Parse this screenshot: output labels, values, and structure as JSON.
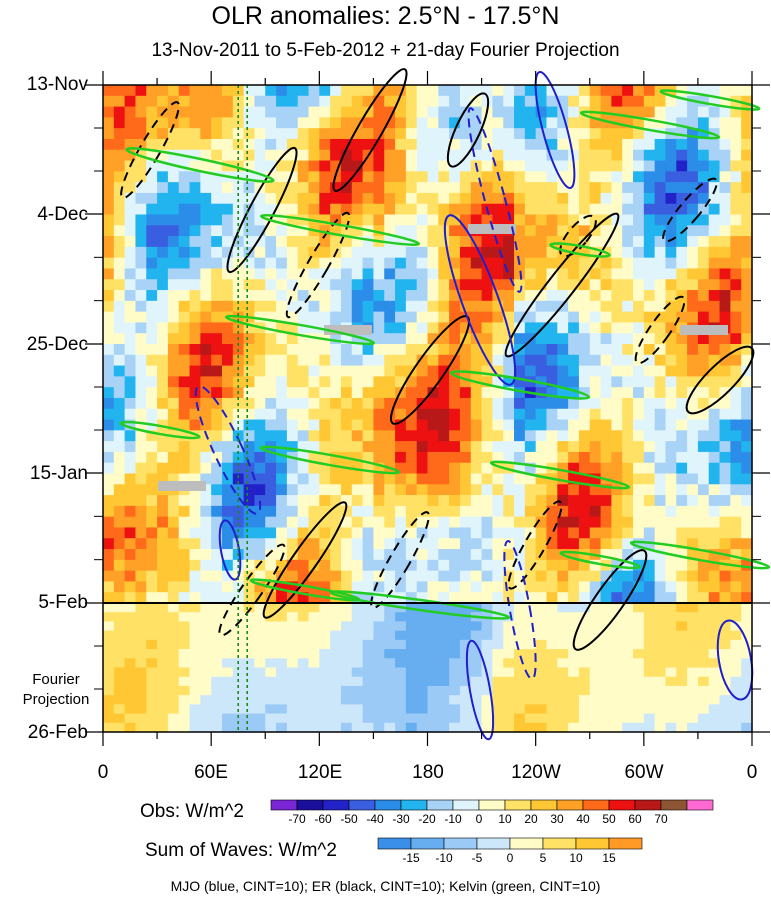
{
  "chart_data": {
    "type": "heatmap",
    "title": "OLR anomalies: 2.5°N - 17.5°N",
    "subtitle": "13-Nov-2011 to 5-Feb-2012 + 21-day Fourier Projection",
    "y_tick_labels": [
      "13-Nov",
      "4-Dec",
      "25-Dec",
      "15-Jan",
      "5-Feb",
      "26-Feb"
    ],
    "x_tick_labels": [
      "0",
      "60E",
      "120E",
      "180",
      "120W",
      "60W",
      "0"
    ],
    "x_range_deg_east": [
      0,
      360
    ],
    "observation_end": "5-Feb",
    "projection_label": [
      "Fourier",
      "Projection"
    ],
    "obs_colorbar": {
      "label": "Obs: W/m^2",
      "ticks": [
        "-70",
        "-60",
        "-50",
        "-40",
        "-30",
        "-20",
        "-10",
        "0",
        "10",
        "20",
        "30",
        "40",
        "50",
        "60",
        "70"
      ],
      "colors": [
        "#7a26d6",
        "#1a0f9c",
        "#2222c8",
        "#3a5ee0",
        "#2b8de8",
        "#22b4ee",
        "#a8d2f6",
        "#e0f4fb",
        "#fffcc8",
        "#ffe166",
        "#ffc733",
        "#ffa126",
        "#ff6a1a",
        "#ee1111",
        "#b81818",
        "#8e5534",
        "#ff6ad2"
      ]
    },
    "waves_colorbar": {
      "label": "Sum of Waves: W/m^2",
      "ticks": [
        "-15",
        "-10",
        "-5",
        "0",
        "5",
        "10",
        "15"
      ],
      "colors": [
        "#3a8fe8",
        "#66aef0",
        "#9ccaf6",
        "#cde7fa",
        "#fffcc8",
        "#ffe166",
        "#ffc733",
        "#ff9a26"
      ]
    },
    "contour_legend": "MJO (blue, CINT=10); ER (black, CINT=10); Kelvin (green, CINT=10)",
    "series": [
      {
        "name": "MJO",
        "color": "#1f1fcc",
        "cint": 10
      },
      {
        "name": "ER",
        "color": "#000000",
        "cint": 10
      },
      {
        "name": "Kelvin",
        "color": "#22cc22",
        "cint": 10
      }
    ],
    "reference_lines_lon": [
      75,
      80
    ]
  }
}
